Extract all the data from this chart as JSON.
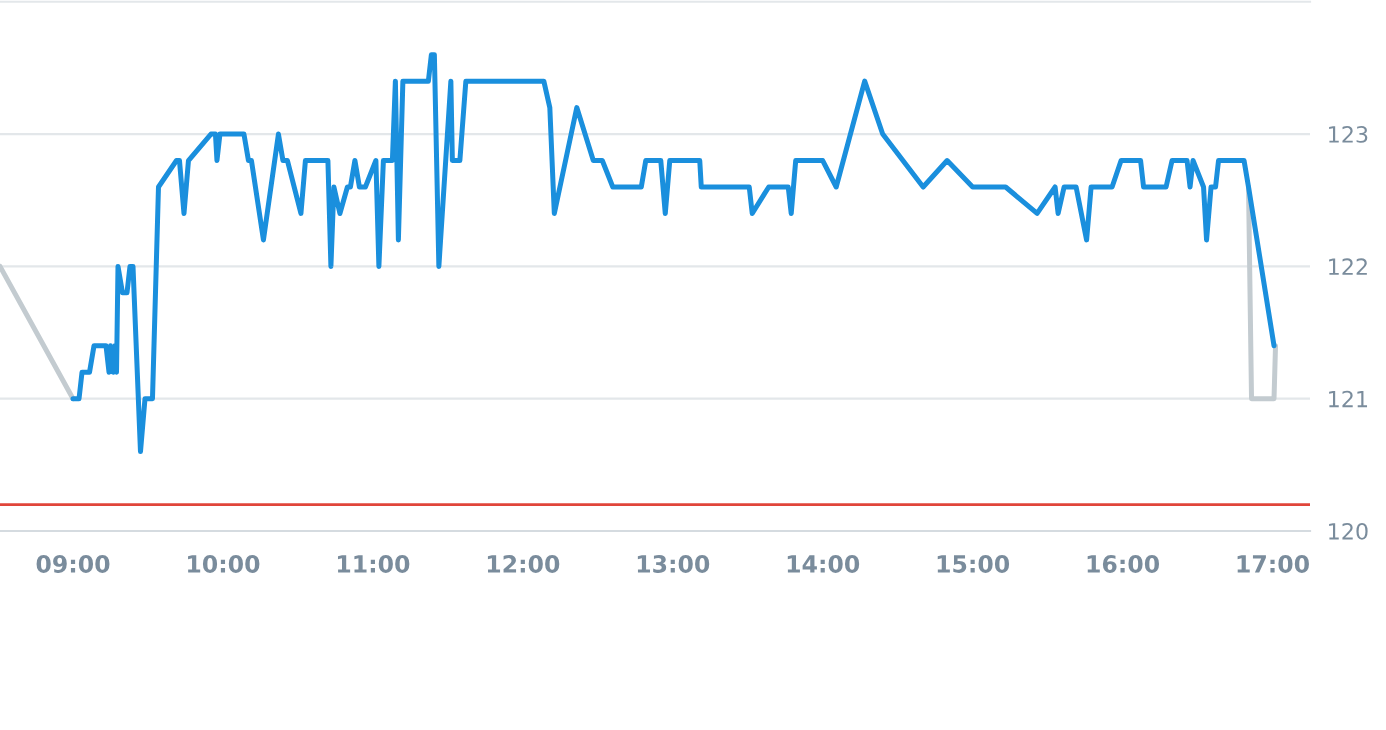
{
  "chart_data": {
    "type": "line",
    "xlim": [
      8.513,
      17.25
    ],
    "ylim": [
      120,
      124
    ],
    "xticks": [
      {
        "value": 9,
        "label": "09:00"
      },
      {
        "value": 10,
        "label": "10:00"
      },
      {
        "value": 11,
        "label": "11:00"
      },
      {
        "value": 12,
        "label": "12:00"
      },
      {
        "value": 13,
        "label": "13:00"
      },
      {
        "value": 14,
        "label": "14:00"
      },
      {
        "value": 15,
        "label": "15:00"
      },
      {
        "value": 16,
        "label": "16:00"
      },
      {
        "value": 17,
        "label": "17:00"
      }
    ],
    "yticks": [
      120,
      121,
      122,
      123
    ],
    "grid": "y",
    "marker": "none",
    "line_style": "solid",
    "ref_lines": [
      {
        "axis": "y",
        "value": 120.2,
        "color": "#e0453a"
      }
    ],
    "series": [
      {
        "color": "#c3cbd0",
        "x": [
          8.513,
          9.0,
          9.01,
          16.84,
          16.86,
          17.01,
          17.02
        ],
        "values": [
          122.0,
          121.0,
          null,
          122.6,
          121.0,
          121.0,
          121.4
        ]
      },
      {
        "color": "#1a8fdd",
        "x": [
          9.0,
          9.04,
          9.06,
          9.11,
          9.14,
          9.22,
          9.24,
          9.25,
          9.27,
          9.28,
          9.29,
          9.3,
          9.33,
          9.36,
          9.38,
          9.4,
          9.45,
          9.48,
          9.53,
          9.57,
          9.69,
          9.71,
          9.74,
          9.77,
          9.92,
          9.95,
          9.96,
          9.98,
          10.14,
          10.17,
          10.19,
          10.27,
          10.37,
          10.4,
          10.43,
          10.52,
          10.55,
          10.7,
          10.72,
          10.74,
          10.78,
          10.83,
          10.85,
          10.88,
          10.91,
          10.95,
          11.02,
          11.04,
          11.07,
          11.13,
          11.15,
          11.17,
          11.2,
          11.37,
          11.39,
          11.41,
          11.44,
          11.52,
          11.53,
          11.58,
          11.62,
          12.14,
          12.18,
          12.21,
          12.36,
          12.47,
          12.53,
          12.6,
          12.79,
          12.82,
          12.92,
          12.95,
          12.98,
          13.18,
          13.19,
          13.51,
          13.53,
          13.64,
          13.77,
          13.79,
          13.82,
          14.0,
          14.09,
          14.28,
          14.4,
          14.67,
          14.83,
          15.0,
          15.22,
          15.43,
          15.55,
          15.57,
          15.61,
          15.69,
          15.76,
          15.79,
          15.93,
          15.99,
          16.12,
          16.14,
          16.29,
          16.33,
          16.43,
          16.45,
          16.47,
          16.54,
          16.56,
          16.59,
          16.62,
          16.64,
          16.81,
          16.84,
          17.01
        ],
        "values": [
          121.0,
          121.0,
          121.2,
          121.2,
          121.4,
          121.4,
          121.2,
          121.4,
          121.2,
          121.4,
          121.2,
          122.0,
          121.8,
          121.8,
          122.0,
          122.0,
          120.6,
          121.0,
          121.0,
          122.6,
          122.8,
          122.8,
          122.4,
          122.8,
          123.0,
          123.0,
          122.8,
          123.0,
          123.0,
          122.8,
          122.8,
          122.2,
          123.0,
          122.8,
          122.8,
          122.4,
          122.8,
          122.8,
          122.0,
          122.6,
          122.4,
          122.6,
          122.6,
          122.8,
          122.6,
          122.6,
          122.8,
          122.0,
          122.8,
          122.8,
          123.4,
          122.2,
          123.4,
          123.4,
          123.6,
          123.6,
          122.0,
          123.4,
          122.8,
          122.8,
          123.4,
          123.4,
          123.2,
          122.4,
          123.2,
          122.8,
          122.8,
          122.6,
          122.6,
          122.8,
          122.8,
          122.4,
          122.8,
          122.8,
          122.6,
          122.6,
          122.4,
          122.6,
          122.6,
          122.4,
          122.8,
          122.8,
          122.6,
          123.4,
          123.0,
          122.6,
          122.8,
          122.6,
          122.6,
          122.4,
          122.6,
          122.4,
          122.6,
          122.6,
          122.2,
          122.6,
          122.6,
          122.8,
          122.8,
          122.6,
          122.6,
          122.8,
          122.8,
          122.6,
          122.8,
          122.6,
          122.2,
          122.6,
          122.6,
          122.8,
          122.8,
          122.6,
          121.4
        ]
      }
    ]
  }
}
